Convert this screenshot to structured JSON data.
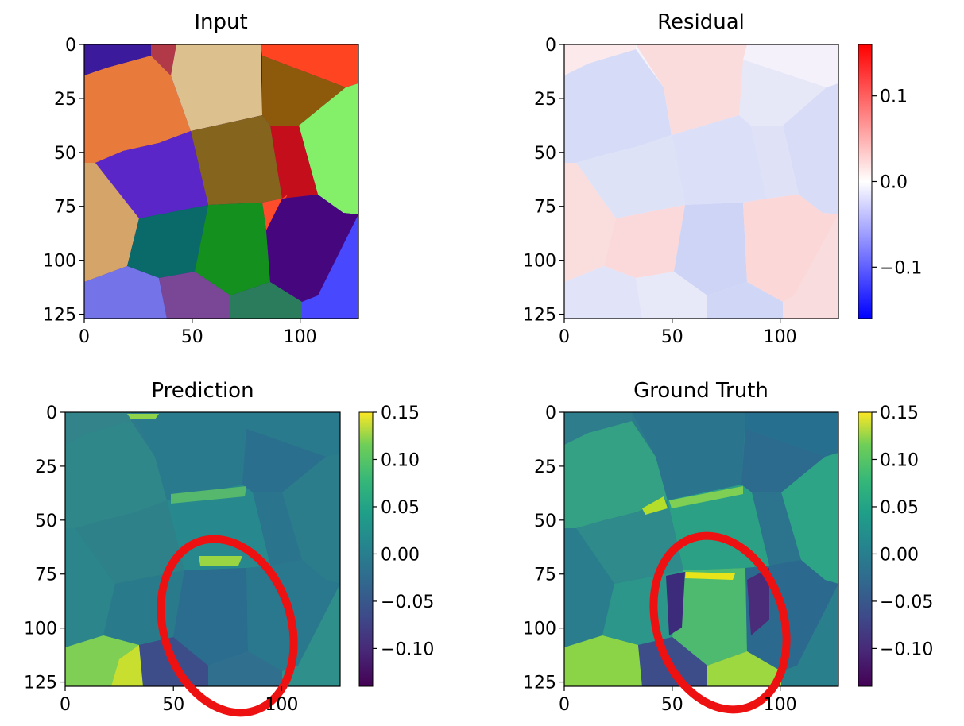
{
  "chart_data": [
    {
      "type": "heatmap",
      "title": "Input",
      "colormap": "categorical",
      "x_ticks": [
        0,
        50,
        100
      ],
      "y_ticks": [
        0,
        25,
        50,
        75,
        100,
        125
      ],
      "xlim": [
        0,
        127
      ],
      "ylim": [
        127,
        0
      ],
      "cells": [
        {
          "region": 1,
          "color": "#3c1a9c"
        },
        {
          "region": 2,
          "color": "#b23a48"
        },
        {
          "region": 3,
          "color": "#dcc08e"
        },
        {
          "region": 4,
          "color": "#ff4422"
        },
        {
          "region": 5,
          "color": "#e87a3c"
        },
        {
          "region": 6,
          "color": "#8c5a0a"
        },
        {
          "region": 7,
          "color": "#84f06a"
        },
        {
          "region": 8,
          "color": "#c40e1c"
        },
        {
          "region": 9,
          "color": "#5a26c8"
        },
        {
          "region": 10,
          "color": "#85641e"
        },
        {
          "region": 11,
          "color": "#d4a468"
        },
        {
          "region": 12,
          "color": "#0a6a6a"
        },
        {
          "region": 13,
          "color": "#14901e"
        },
        {
          "region": 14,
          "color": "#ff4c2a"
        },
        {
          "region": 15,
          "color": "#46067e"
        },
        {
          "region": 16,
          "color": "#4848ff"
        },
        {
          "region": 17,
          "color": "#7474e8"
        },
        {
          "region": 18,
          "color": "#7a4696"
        },
        {
          "region": 19,
          "color": "#2a7c5c"
        }
      ]
    },
    {
      "type": "heatmap",
      "title": "Residual",
      "colormap": "bwr",
      "x_ticks": [
        0,
        50,
        100
      ],
      "y_ticks": [
        0,
        25,
        50,
        75,
        100,
        125
      ],
      "xlim": [
        0,
        127
      ],
      "ylim": [
        127,
        0
      ],
      "colorbar": {
        "range": [
          -0.16,
          0.16
        ],
        "ticks": [
          0.1,
          0.0,
          -0.1
        ],
        "tick_labels": [
          "0.1",
          "0.0",
          "−0.1"
        ]
      }
    },
    {
      "type": "heatmap",
      "title": "Prediction",
      "colormap": "viridis",
      "x_ticks": [
        0,
        50,
        100
      ],
      "y_ticks": [
        0,
        25,
        50,
        75,
        100,
        125
      ],
      "xlim": [
        0,
        127
      ],
      "ylim": [
        127,
        0
      ],
      "colorbar": {
        "range": [
          -0.14,
          0.15
        ],
        "ticks": [
          0.15,
          0.1,
          0.05,
          0.0,
          -0.05,
          -0.1
        ],
        "tick_labels": [
          "0.15",
          "0.10",
          "0.05",
          "0.00",
          "−0.05",
          "−0.10"
        ]
      },
      "annotation": {
        "shape": "ellipse",
        "color": "#ee1111",
        "center": [
          72,
          100
        ],
        "note": ""
      }
    },
    {
      "type": "heatmap",
      "title": "Ground Truth",
      "colormap": "viridis",
      "x_ticks": [
        0,
        50,
        100
      ],
      "y_ticks": [
        0,
        25,
        50,
        75,
        100,
        125
      ],
      "xlim": [
        0,
        127
      ],
      "ylim": [
        127,
        0
      ],
      "colorbar": {
        "range": [
          -0.14,
          0.15
        ],
        "ticks": [
          0.15,
          0.1,
          0.05,
          0.0,
          -0.05,
          -0.1
        ],
        "tick_labels": [
          "0.15",
          "0.10",
          "0.05",
          "0.00",
          "−0.05",
          "−0.10"
        ]
      },
      "annotation": {
        "shape": "ellipse",
        "color": "#ee1111",
        "center": [
          70,
          100
        ],
        "note": ""
      }
    }
  ]
}
